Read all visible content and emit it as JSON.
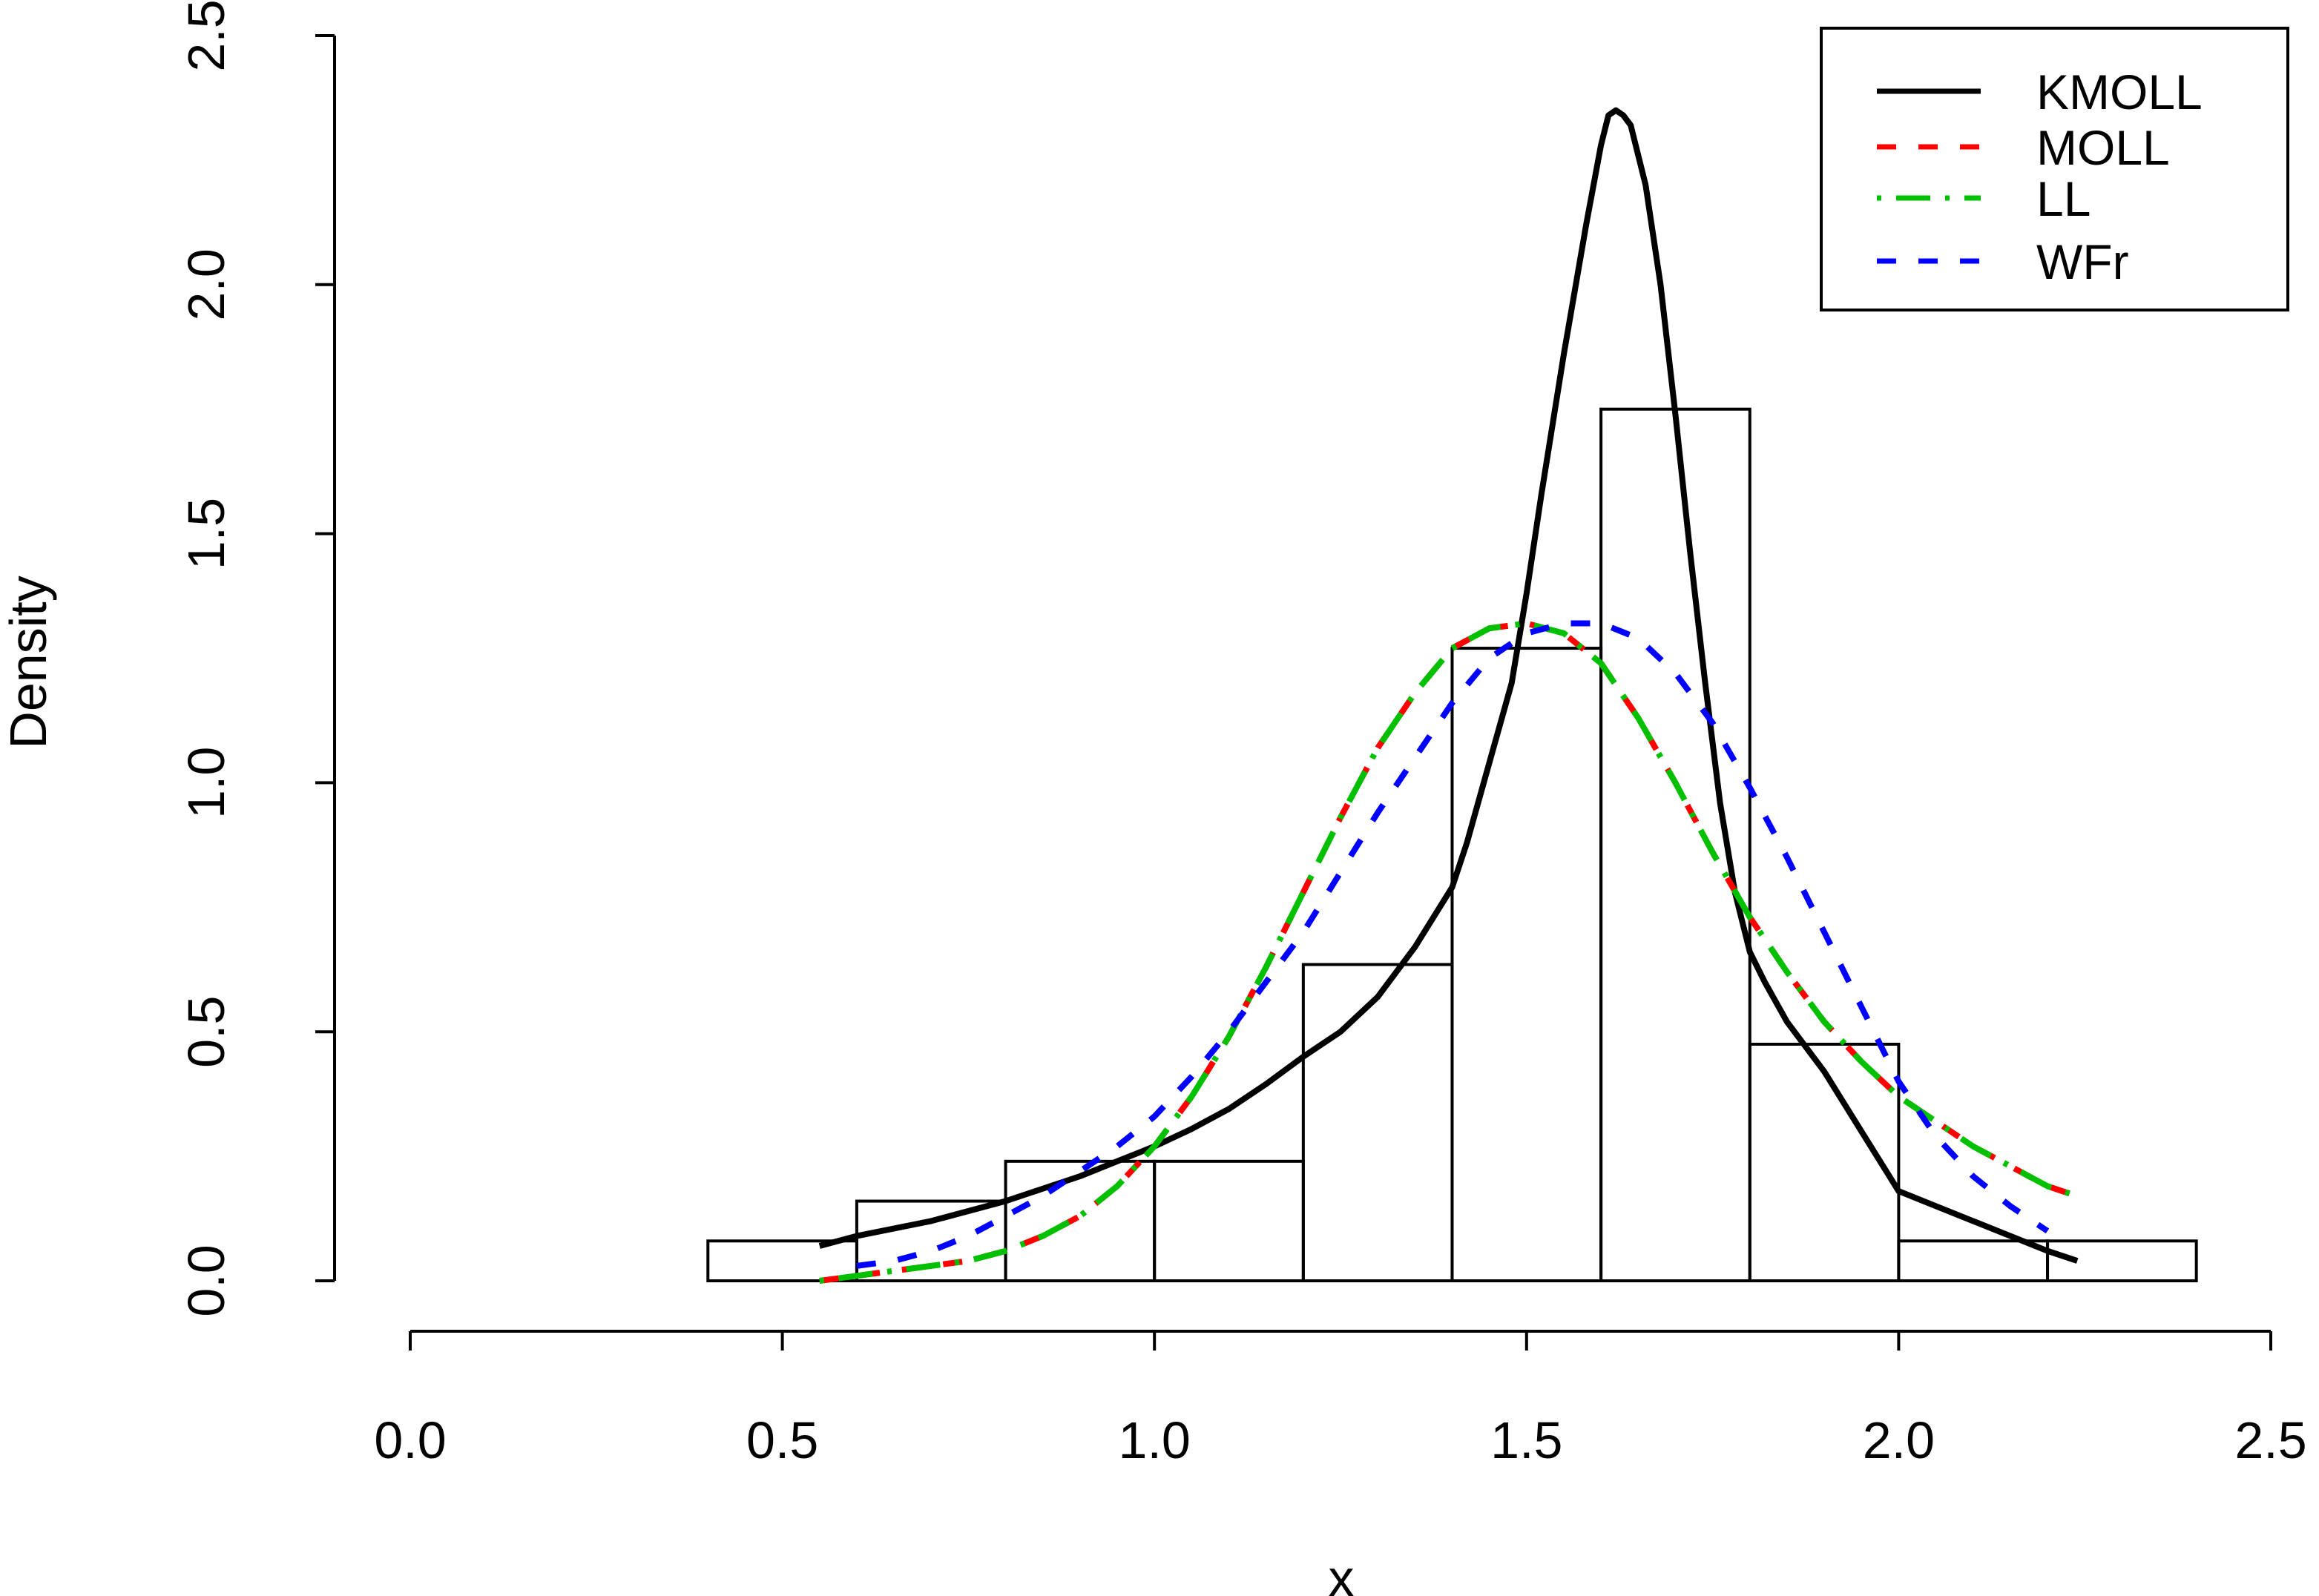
{
  "chart_data": {
    "type": "line",
    "title": "",
    "xlabel": "x",
    "ylabel": "Density",
    "xlim": [
      0.0,
      2.5
    ],
    "ylim": [
      0.0,
      2.5
    ],
    "xticks": [
      "0.0",
      "0.5",
      "1.0",
      "1.5",
      "2.0",
      "2.5"
    ],
    "yticks": [
      "0.0",
      "0.5",
      "1.0",
      "1.5",
      "2.0",
      "2.5"
    ],
    "grid": false,
    "legend_position": "top-right",
    "histogram": {
      "bin_edges": [
        0.4,
        0.6,
        0.8,
        1.0,
        1.2,
        1.4,
        1.6,
        1.8,
        2.0,
        2.2,
        2.4
      ],
      "densities": [
        0.08,
        0.16,
        0.24,
        0.24,
        0.635,
        1.27,
        1.75,
        0.475,
        0.08,
        0.08
      ]
    },
    "series": [
      {
        "name": "KMOLL",
        "color": "#000000",
        "dash": "solid",
        "x": [
          0.55,
          0.6,
          0.7,
          0.8,
          0.9,
          1.0,
          1.05,
          1.1,
          1.15,
          1.2,
          1.25,
          1.3,
          1.35,
          1.4,
          1.42,
          1.45,
          1.48,
          1.5,
          1.52,
          1.55,
          1.58,
          1.6,
          1.61,
          1.62,
          1.63,
          1.64,
          1.66,
          1.68,
          1.7,
          1.72,
          1.74,
          1.76,
          1.78,
          1.8,
          1.82,
          1.85,
          1.9,
          1.95,
          2.0,
          2.05,
          2.1,
          2.15,
          2.2,
          2.24
        ],
        "y": [
          0.07,
          0.09,
          0.12,
          0.16,
          0.21,
          0.27,
          0.305,
          0.345,
          0.395,
          0.45,
          0.5,
          0.57,
          0.67,
          0.79,
          0.88,
          1.04,
          1.2,
          1.38,
          1.58,
          1.86,
          2.12,
          2.28,
          2.34,
          2.35,
          2.34,
          2.32,
          2.2,
          2.0,
          1.74,
          1.46,
          1.2,
          0.96,
          0.78,
          0.66,
          0.6,
          0.52,
          0.42,
          0.3,
          0.18,
          0.15,
          0.12,
          0.09,
          0.06,
          0.04
        ]
      },
      {
        "name": "MOLL",
        "color": "#ff0000",
        "dash": "dashed",
        "x": [
          0.55,
          0.6,
          0.65,
          0.7,
          0.75,
          0.8,
          0.85,
          0.9,
          0.95,
          1.0,
          1.05,
          1.1,
          1.15,
          1.2,
          1.25,
          1.3,
          1.35,
          1.4,
          1.45,
          1.5,
          1.55,
          1.6,
          1.65,
          1.7,
          1.75,
          1.8,
          1.85,
          1.9,
          1.95,
          2.0,
          2.05,
          2.1,
          2.15,
          2.2,
          2.24
        ],
        "y": [
          0.0,
          0.01,
          0.02,
          0.03,
          0.04,
          0.06,
          0.09,
          0.13,
          0.19,
          0.27,
          0.37,
          0.49,
          0.63,
          0.78,
          0.93,
          1.07,
          1.18,
          1.27,
          1.31,
          1.32,
          1.3,
          1.24,
          1.13,
          1.0,
          0.86,
          0.73,
          0.62,
          0.52,
          0.44,
          0.37,
          0.32,
          0.27,
          0.23,
          0.19,
          0.17
        ]
      },
      {
        "name": "LL",
        "color": "#00c000",
        "dash": "dotdash",
        "x": [
          0.55,
          0.6,
          0.65,
          0.7,
          0.75,
          0.8,
          0.85,
          0.9,
          0.95,
          1.0,
          1.05,
          1.1,
          1.15,
          1.2,
          1.25,
          1.3,
          1.35,
          1.4,
          1.45,
          1.5,
          1.55,
          1.6,
          1.65,
          1.7,
          1.75,
          1.8,
          1.85,
          1.9,
          1.95,
          2.0,
          2.05,
          2.1,
          2.15,
          2.2,
          2.24
        ],
        "y": [
          0.0,
          0.01,
          0.02,
          0.03,
          0.04,
          0.06,
          0.09,
          0.13,
          0.19,
          0.27,
          0.37,
          0.49,
          0.63,
          0.78,
          0.93,
          1.07,
          1.18,
          1.27,
          1.31,
          1.32,
          1.3,
          1.24,
          1.13,
          1.0,
          0.86,
          0.73,
          0.62,
          0.52,
          0.44,
          0.37,
          0.32,
          0.27,
          0.23,
          0.19,
          0.17
        ]
      },
      {
        "name": "WFr",
        "color": "#0000ff",
        "dash": "dashed",
        "x": [
          0.6,
          0.65,
          0.7,
          0.75,
          0.8,
          0.85,
          0.9,
          0.95,
          1.0,
          1.05,
          1.1,
          1.15,
          1.2,
          1.25,
          1.3,
          1.35,
          1.4,
          1.45,
          1.5,
          1.55,
          1.6,
          1.65,
          1.7,
          1.75,
          1.8,
          1.85,
          1.9,
          1.95,
          2.0,
          2.05,
          2.1,
          2.15,
          2.2
        ],
        "y": [
          0.03,
          0.04,
          0.06,
          0.09,
          0.13,
          0.17,
          0.22,
          0.27,
          0.33,
          0.41,
          0.5,
          0.6,
          0.7,
          0.82,
          0.94,
          1.05,
          1.16,
          1.25,
          1.3,
          1.32,
          1.32,
          1.29,
          1.22,
          1.12,
          0.99,
          0.85,
          0.7,
          0.55,
          0.4,
          0.29,
          0.21,
          0.15,
          0.1
        ]
      }
    ]
  }
}
